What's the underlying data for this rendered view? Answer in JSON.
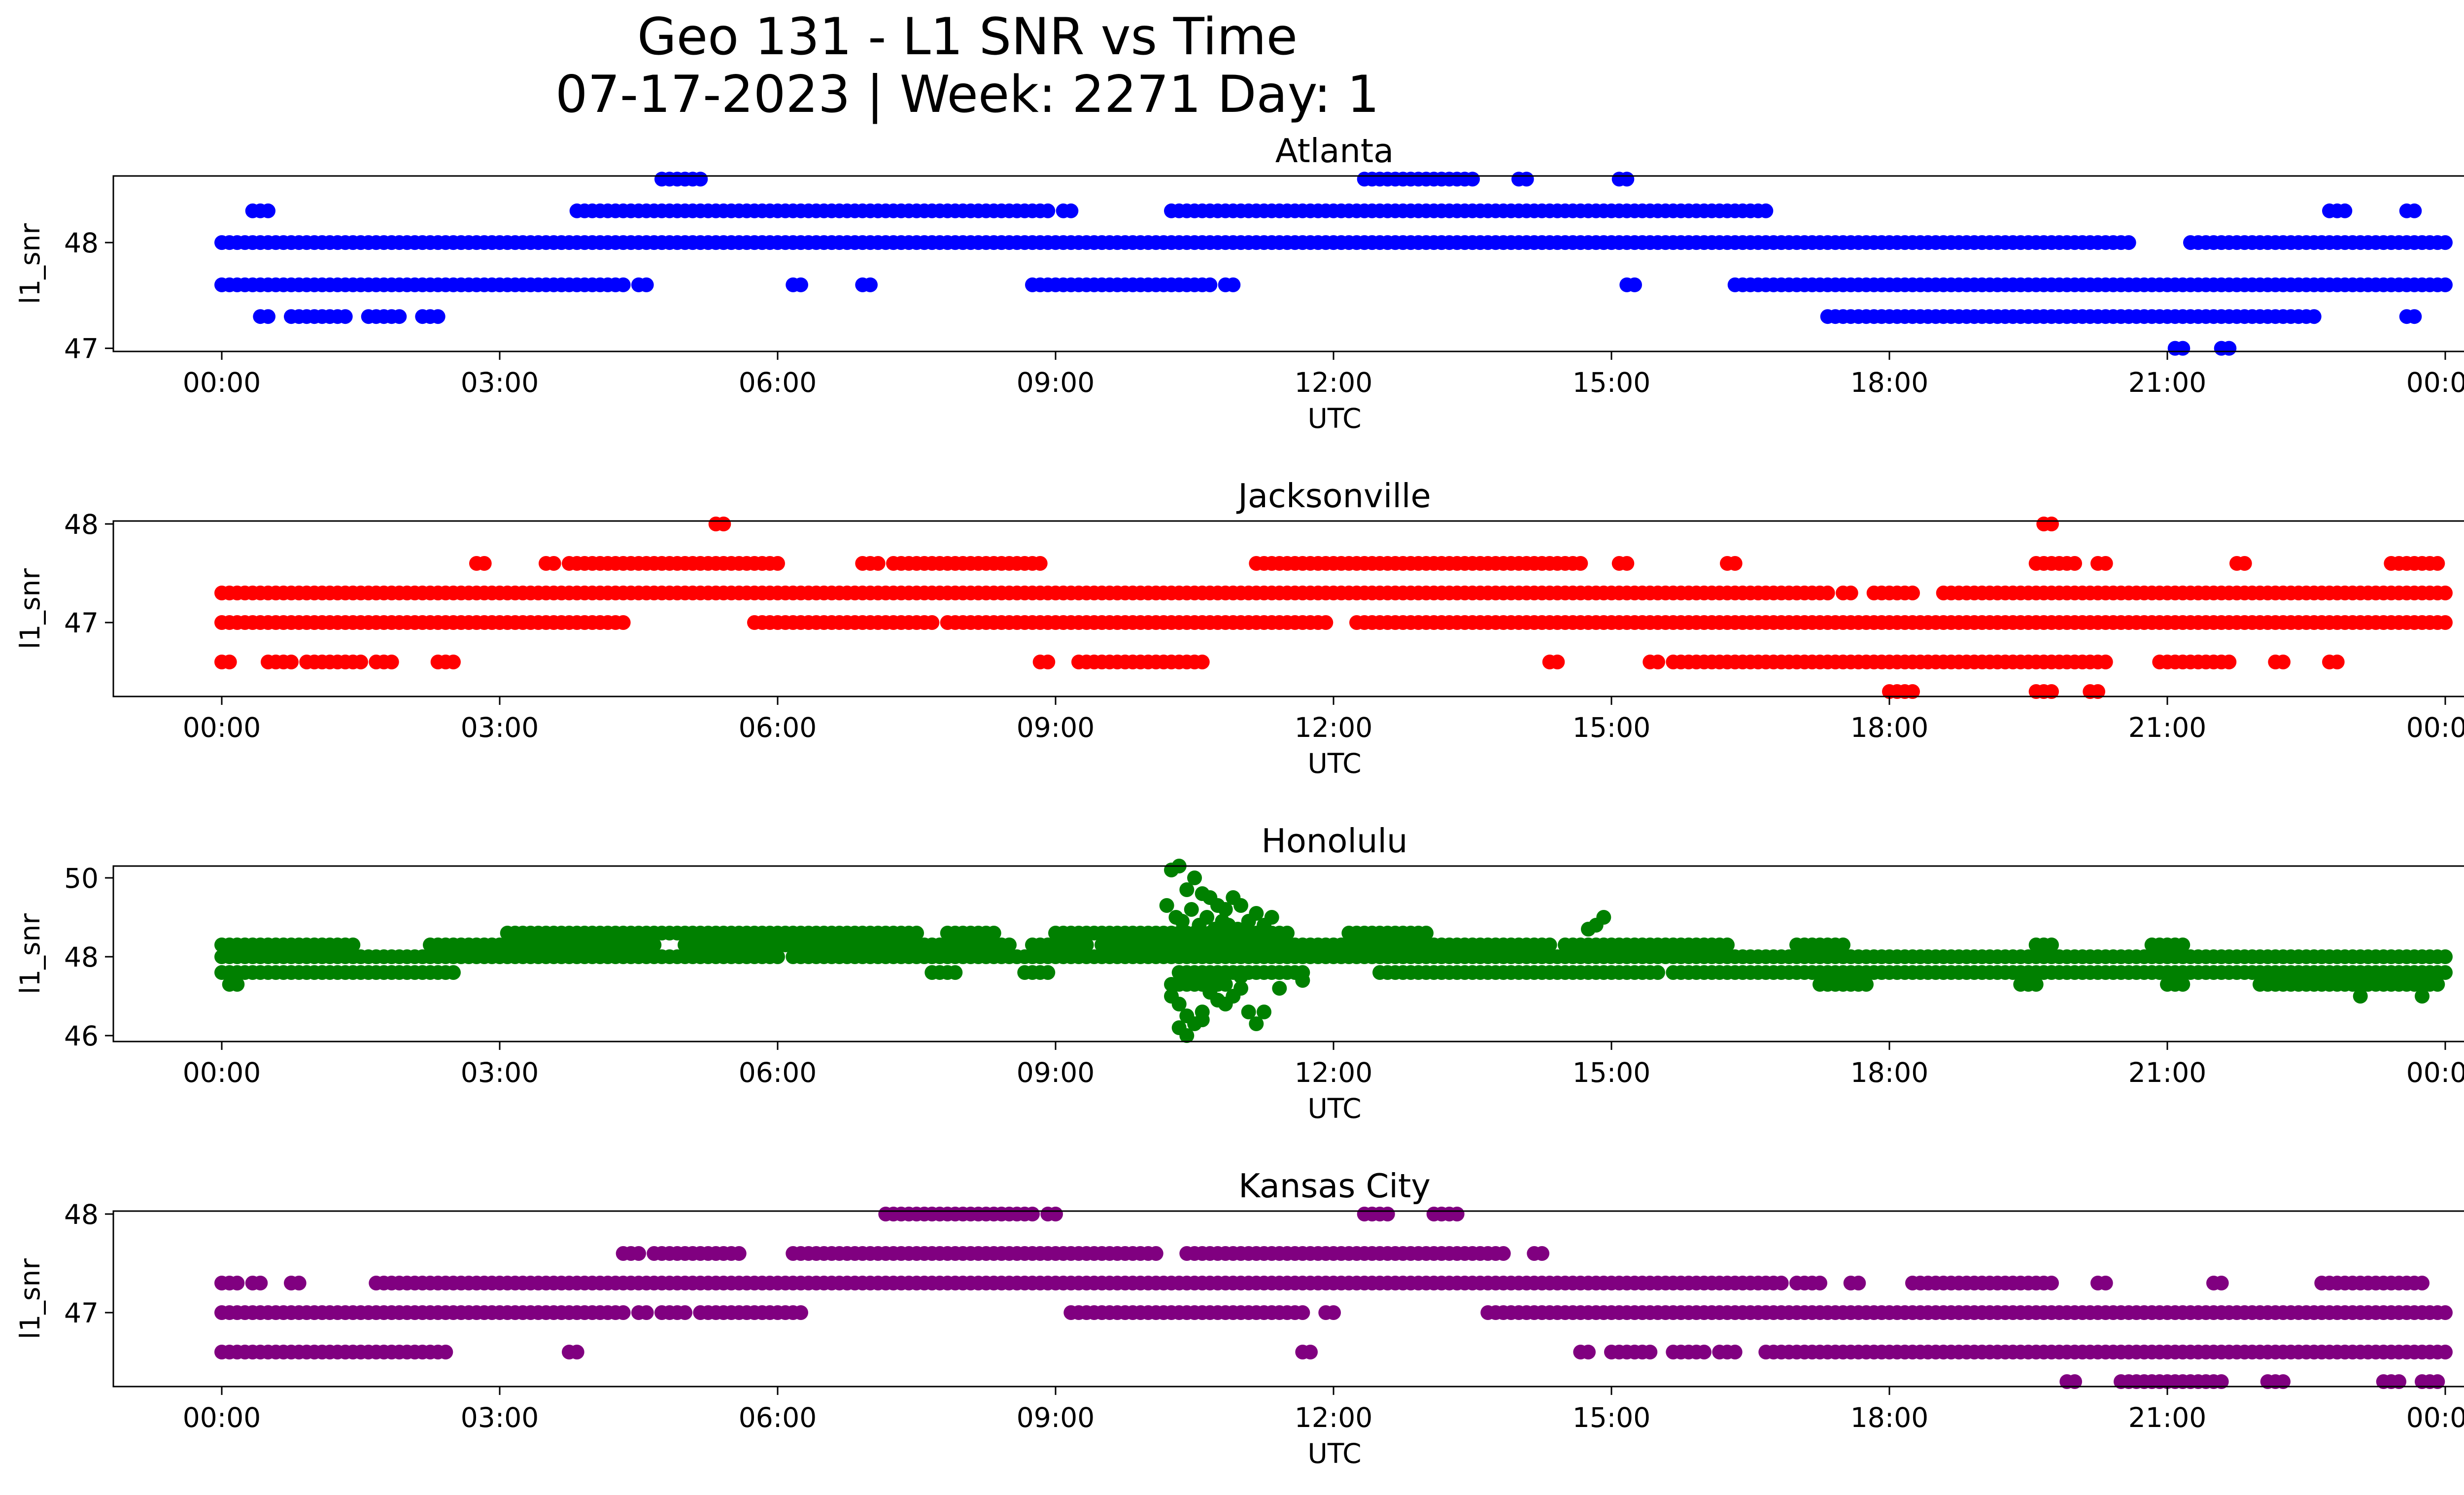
{
  "figure": {
    "title_line1": "Geo 131 - L1 SNR vs Time",
    "title_line2": "07-17-2023 | Week: 2271 Day: 1"
  },
  "chart_data": [
    {
      "type": "scatter",
      "title": "Atlanta",
      "xlabel": "UTC",
      "ylabel": "l1_snr",
      "color": "#0000ff",
      "xlim": [
        "00:00",
        "24:00"
      ],
      "ylim": [
        46.97,
        48.63
      ],
      "yticks": [
        47,
        48
      ],
      "xtick_labels": [
        "00:00",
        "03:00",
        "06:00",
        "09:00",
        "12:00",
        "15:00",
        "18:00",
        "21:00",
        "00:00"
      ],
      "levels": [
        {
          "y": 48.6,
          "segments": [
            [
              "04:45",
              "05:10"
            ],
            [
              "12:20",
              "13:30"
            ],
            [
              "14:00",
              "14:05"
            ],
            [
              "15:05",
              "15:10"
            ]
          ]
        },
        {
          "y": 48.3,
          "segments": [
            [
              "00:20",
              "00:30"
            ],
            [
              "03:50",
              "03:55"
            ],
            [
              "04:00",
              "08:55"
            ],
            [
              "09:05",
              "09:10"
            ],
            [
              "10:15",
              "16:40"
            ],
            [
              "22:45",
              "22:55"
            ],
            [
              "23:35",
              "23:40"
            ]
          ]
        },
        {
          "y": 48.0,
          "segments": [
            [
              "00:00",
              "12:25"
            ],
            [
              "12:30",
              "20:35"
            ],
            [
              "21:15",
              "24:00"
            ]
          ]
        },
        {
          "y": 47.6,
          "segments": [
            [
              "00:00",
              "04:20"
            ],
            [
              "04:30",
              "04:35"
            ],
            [
              "06:10",
              "06:15"
            ],
            [
              "06:55",
              "07:00"
            ],
            [
              "08:45",
              "10:40"
            ],
            [
              "10:50",
              "10:55"
            ],
            [
              "15:10",
              "15:15"
            ],
            [
              "16:20",
              "16:30"
            ],
            [
              "16:35",
              "24:00"
            ]
          ]
        },
        {
          "y": 47.3,
          "segments": [
            [
              "00:25",
              "00:30"
            ],
            [
              "00:45",
              "01:20"
            ],
            [
              "01:35",
              "01:55"
            ],
            [
              "02:10",
              "02:20"
            ],
            [
              "17:20",
              "22:35"
            ],
            [
              "23:35",
              "23:40"
            ]
          ]
        },
        {
          "y": 47.0,
          "segments": [
            [
              "21:05",
              "21:10"
            ],
            [
              "21:35",
              "21:40"
            ]
          ]
        }
      ]
    },
    {
      "type": "scatter",
      "title": "Jacksonville",
      "xlabel": "UTC",
      "ylabel": "l1_snr",
      "color": "#ff0000",
      "xlim": [
        "00:00",
        "24:00"
      ],
      "ylim": [
        46.25,
        48.03
      ],
      "yticks": [
        47,
        48
      ],
      "xtick_labels": [
        "00:00",
        "03:00",
        "06:00",
        "09:00",
        "12:00",
        "15:00",
        "18:00",
        "21:00",
        "00:00"
      ],
      "levels": [
        {
          "y": 48.0,
          "segments": [
            [
              "05:20",
              "05:25"
            ],
            [
              "19:40",
              "19:45"
            ]
          ]
        },
        {
          "y": 47.6,
          "segments": [
            [
              "02:45",
              "02:50"
            ],
            [
              "03:30",
              "03:35"
            ],
            [
              "03:45",
              "06:00"
            ],
            [
              "06:55",
              "07:05"
            ],
            [
              "07:15",
              "08:50"
            ],
            [
              "11:10",
              "13:55"
            ],
            [
              "14:00",
              "14:40"
            ],
            [
              "15:05",
              "15:10"
            ],
            [
              "16:15",
              "16:20"
            ],
            [
              "19:35",
              "19:50"
            ],
            [
              "19:55",
              "20:00"
            ],
            [
              "20:15",
              "20:20"
            ],
            [
              "21:45",
              "21:50"
            ],
            [
              "23:25",
              "23:55"
            ]
          ]
        },
        {
          "y": 47.3,
          "segments": [
            [
              "00:00",
              "17:20"
            ],
            [
              "17:30",
              "17:35"
            ],
            [
              "17:50",
              "17:55"
            ],
            [
              "18:00",
              "18:15"
            ],
            [
              "18:35",
              "24:00"
            ]
          ]
        },
        {
          "y": 47.0,
          "segments": [
            [
              "00:00",
              "04:20"
            ],
            [
              "05:45",
              "05:50"
            ],
            [
              "05:55",
              "07:40"
            ],
            [
              "07:50",
              "11:55"
            ],
            [
              "12:15",
              "12:25"
            ],
            [
              "12:30",
              "24:00"
            ]
          ]
        },
        {
          "y": 46.6,
          "segments": [
            [
              "00:00",
              "00:05"
            ],
            [
              "00:30",
              "00:35"
            ],
            [
              "00:40",
              "00:45"
            ],
            [
              "00:55",
              "01:30"
            ],
            [
              "01:40",
              "01:50"
            ],
            [
              "02:20",
              "02:30"
            ],
            [
              "08:50",
              "08:55"
            ],
            [
              "09:15",
              "10:25"
            ],
            [
              "10:30",
              "10:35"
            ],
            [
              "14:20",
              "14:25"
            ],
            [
              "15:25",
              "15:30"
            ],
            [
              "15:40",
              "20:20"
            ],
            [
              "20:55",
              "21:40"
            ],
            [
              "22:10",
              "22:15"
            ],
            [
              "22:45",
              "22:50"
            ]
          ]
        },
        {
          "y": 46.3,
          "segments": [
            [
              "18:00",
              "18:15"
            ],
            [
              "19:35",
              "19:45"
            ],
            [
              "20:10",
              "20:15"
            ]
          ]
        }
      ]
    },
    {
      "type": "scatter",
      "title": "Honolulu",
      "xlabel": "UTC",
      "ylabel": "l1_snr",
      "color": "#008000",
      "xlim": [
        "00:00",
        "24:00"
      ],
      "ylim": [
        45.85,
        50.3
      ],
      "yticks": [
        46,
        48,
        50
      ],
      "xtick_labels": [
        "00:00",
        "03:00",
        "06:00",
        "09:00",
        "12:00",
        "15:00",
        "18:00",
        "21:00",
        "00:00"
      ],
      "levels": [
        {
          "y": 48.6,
          "segments": [
            [
              "03:05",
              "07:30"
            ],
            [
              "07:50",
              "08:20"
            ],
            [
              "09:00",
              "11:30"
            ],
            [
              "12:10",
              "13:00"
            ]
          ]
        },
        {
          "y": 48.3,
          "segments": [
            [
              "00:00",
              "01:25"
            ],
            [
              "02:15",
              "04:40"
            ],
            [
              "05:00",
              "08:30"
            ],
            [
              "08:45",
              "09:20"
            ],
            [
              "09:30",
              "14:20"
            ],
            [
              "14:30",
              "16:15"
            ],
            [
              "17:00",
              "17:30"
            ],
            [
              "19:35",
              "19:45"
            ],
            [
              "20:50",
              "21:10"
            ]
          ]
        },
        {
          "y": 48.0,
          "segments": [
            [
              "00:00",
              "06:00"
            ],
            [
              "06:10",
              "24:00"
            ]
          ]
        },
        {
          "y": 47.6,
          "segments": [
            [
              "00:00",
              "02:30"
            ],
            [
              "07:40",
              "07:55"
            ],
            [
              "08:40",
              "08:55"
            ],
            [
              "10:20",
              "11:40"
            ],
            [
              "12:30",
              "15:30"
            ],
            [
              "15:40",
              "24:00"
            ]
          ]
        },
        {
          "y": 47.3,
          "segments": [
            [
              "00:05",
              "00:10"
            ],
            [
              "10:15",
              "10:45"
            ],
            [
              "17:15",
              "17:45"
            ],
            [
              "19:25",
              "19:35"
            ],
            [
              "21:00",
              "21:10"
            ],
            [
              "22:00",
              "23:55"
            ]
          ]
        }
      ],
      "points": [
        [
          "10:15",
          50.2
        ],
        [
          "10:20",
          50.3
        ],
        [
          "10:25",
          49.7
        ],
        [
          "10:30",
          50.0
        ],
        [
          "10:35",
          49.6
        ],
        [
          "10:40",
          49.5
        ],
        [
          "10:45",
          49.3
        ],
        [
          "10:50",
          49.2
        ],
        [
          "10:55",
          49.5
        ],
        [
          "11:00",
          49.3
        ],
        [
          "11:10",
          49.1
        ],
        [
          "11:20",
          49.0
        ],
        [
          "10:12",
          49.3
        ],
        [
          "10:18",
          49.0
        ],
        [
          "10:22",
          48.9
        ],
        [
          "10:28",
          49.2
        ],
        [
          "10:33",
          48.8
        ],
        [
          "10:38",
          49.0
        ],
        [
          "10:43",
          48.7
        ],
        [
          "10:48",
          48.9
        ],
        [
          "10:52",
          48.8
        ],
        [
          "10:58",
          48.7
        ],
        [
          "11:05",
          48.9
        ],
        [
          "11:15",
          48.8
        ],
        [
          "10:15",
          47.0
        ],
        [
          "10:20",
          46.8
        ],
        [
          "10:25",
          46.5
        ],
        [
          "10:30",
          46.3
        ],
        [
          "10:35",
          46.6
        ],
        [
          "10:40",
          47.1
        ],
        [
          "10:45",
          46.9
        ],
        [
          "10:50",
          47.3
        ],
        [
          "10:55",
          47.0
        ],
        [
          "11:00",
          47.2
        ],
        [
          "11:05",
          46.6
        ],
        [
          "11:10",
          46.3
        ],
        [
          "11:15",
          46.6
        ],
        [
          "11:25",
          47.2
        ],
        [
          "10:20",
          46.2
        ],
        [
          "10:25",
          46.0
        ],
        [
          "10:35",
          46.4
        ],
        [
          "10:50",
          46.8
        ],
        [
          "11:00",
          47.5
        ],
        [
          "11:40",
          47.4
        ],
        [
          "14:55",
          49.0
        ],
        [
          "14:50",
          48.8
        ],
        [
          "14:45",
          48.7
        ],
        [
          "23:05",
          47.0
        ],
        [
          "23:45",
          47.0
        ]
      ]
    },
    {
      "type": "scatter",
      "title": "Kansas City",
      "xlabel": "UTC",
      "ylabel": "l1_snr",
      "color": "#800080",
      "xlim": [
        "00:00",
        "24:00"
      ],
      "ylim": [
        46.25,
        48.03
      ],
      "yticks": [
        47,
        48
      ],
      "xtick_labels": [
        "00:00",
        "03:00",
        "06:00",
        "09:00",
        "12:00",
        "15:00",
        "18:00",
        "21:00",
        "00:00"
      ],
      "levels": [
        {
          "y": 48.0,
          "segments": [
            [
              "07:10",
              "08:10"
            ],
            [
              "08:15",
              "08:45"
            ],
            [
              "08:55",
              "09:00"
            ],
            [
              "12:20",
              "12:35"
            ],
            [
              "13:05",
              "13:20"
            ]
          ]
        },
        {
          "y": 47.6,
          "segments": [
            [
              "04:20",
              "04:30"
            ],
            [
              "04:40",
              "05:25"
            ],
            [
              "05:30",
              "05:35"
            ],
            [
              "06:10",
              "07:15"
            ],
            [
              "07:20",
              "07:35"
            ],
            [
              "07:40",
              "08:55"
            ],
            [
              "09:00",
              "09:50"
            ],
            [
              "09:55",
              "10:05"
            ],
            [
              "10:25",
              "12:05"
            ],
            [
              "12:10",
              "13:50"
            ],
            [
              "14:10",
              "14:15"
            ]
          ]
        },
        {
          "y": 47.3,
          "segments": [
            [
              "00:00",
              "00:10"
            ],
            [
              "00:20",
              "00:25"
            ],
            [
              "00:45",
              "00:50"
            ],
            [
              "01:40",
              "16:50"
            ],
            [
              "17:00",
              "17:15"
            ],
            [
              "17:35",
              "17:40"
            ],
            [
              "18:15",
              "19:45"
            ],
            [
              "20:15",
              "20:20"
            ],
            [
              "21:30",
              "21:35"
            ],
            [
              "22:40",
              "23:10"
            ],
            [
              "23:15",
              "23:45"
            ]
          ]
        },
        {
          "y": 47.0,
          "segments": [
            [
              "00:00",
              "04:20"
            ],
            [
              "04:30",
              "04:35"
            ],
            [
              "04:45",
              "05:00"
            ],
            [
              "05:10",
              "06:15"
            ],
            [
              "09:10",
              "10:40"
            ],
            [
              "10:45",
              "11:40"
            ],
            [
              "11:55",
              "12:00"
            ],
            [
              "13:40",
              "24:00"
            ]
          ]
        },
        {
          "y": 46.6,
          "segments": [
            [
              "00:00",
              "02:15"
            ],
            [
              "02:20",
              "02:25"
            ],
            [
              "03:45",
              "03:50"
            ],
            [
              "11:40",
              "11:45"
            ],
            [
              "14:40",
              "14:45"
            ],
            [
              "15:00",
              "15:25"
            ],
            [
              "15:40",
              "16:00"
            ],
            [
              "16:10",
              "16:20"
            ],
            [
              "16:40",
              "24:00"
            ]
          ]
        },
        {
          "y": 46.3,
          "segments": [
            [
              "19:55",
              "20:00"
            ],
            [
              "20:30",
              "21:20"
            ],
            [
              "21:25",
              "21:35"
            ],
            [
              "22:05",
              "22:15"
            ],
            [
              "23:20",
              "23:30"
            ],
            [
              "23:45",
              "23:55"
            ]
          ]
        }
      ]
    }
  ]
}
